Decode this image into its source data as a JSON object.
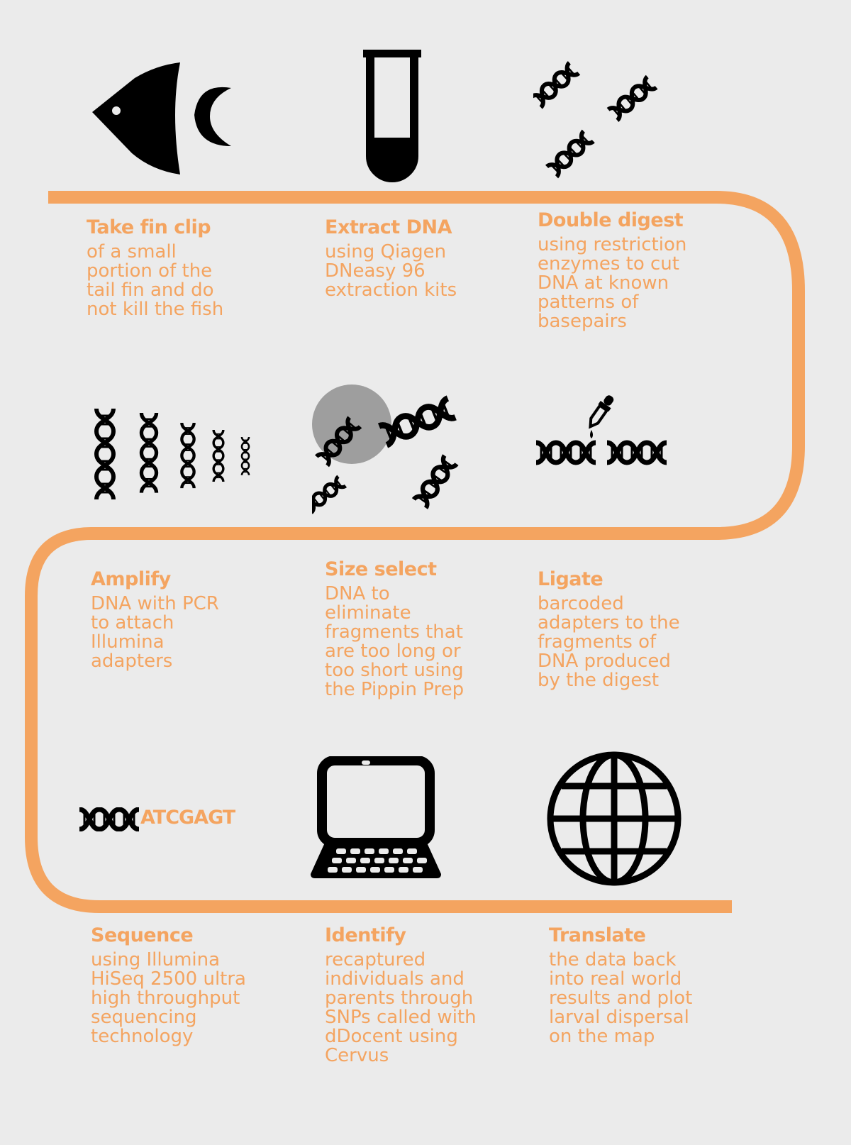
{
  "colors": {
    "accent": "#f4a460",
    "background": "#ebebeb",
    "icon": "#000000",
    "highlight": "#9e9e9e"
  },
  "steps": [
    {
      "title": "Take fin clip",
      "desc": "of a small\nportion of the\ntail fin and do\nnot kill the fish",
      "icon": "fish-icon"
    },
    {
      "title": "Extract DNA",
      "desc": "using Qiagen\nDNeasy 96\nextraction kits",
      "icon": "test-tube-icon"
    },
    {
      "title": "Double digest",
      "desc": "using restriction\nenzymes to cut\nDNA at known\npatterns of\nbasepairs",
      "icon": "dna-fragments-icon"
    },
    {
      "title": "Amplify",
      "desc": "DNA with PCR\nto attach\nIllumina\nadapters",
      "icon": "dna-amplify-icon"
    },
    {
      "title": "Size select",
      "desc": "DNA to\neliminate\nfragments that\nare too long or\ntoo short using\nthe Pippin Prep",
      "icon": "dna-size-select-icon"
    },
    {
      "title": "Ligate",
      "desc": "barcoded\nadapters to the\nfragments of\nDNA produced\nby the digest",
      "icon": "dropper-dna-icon"
    },
    {
      "title": "Sequence",
      "desc": "using Illumina\nHiSeq 2500 ultra\nhigh throughput\nsequencing\ntechnology",
      "icon": "dna-sequence-icon",
      "sequence": "ATCGAGT"
    },
    {
      "title": "Identify",
      "desc": "recaptured\nindividuals and\nparents through\nSNPs called with\ndDocent using\nCervus",
      "icon": "laptop-icon"
    },
    {
      "title": "Translate",
      "desc": "the data back\ninto real world\nresults and plot\nlarval dispersal\non the map",
      "icon": "globe-icon"
    }
  ]
}
